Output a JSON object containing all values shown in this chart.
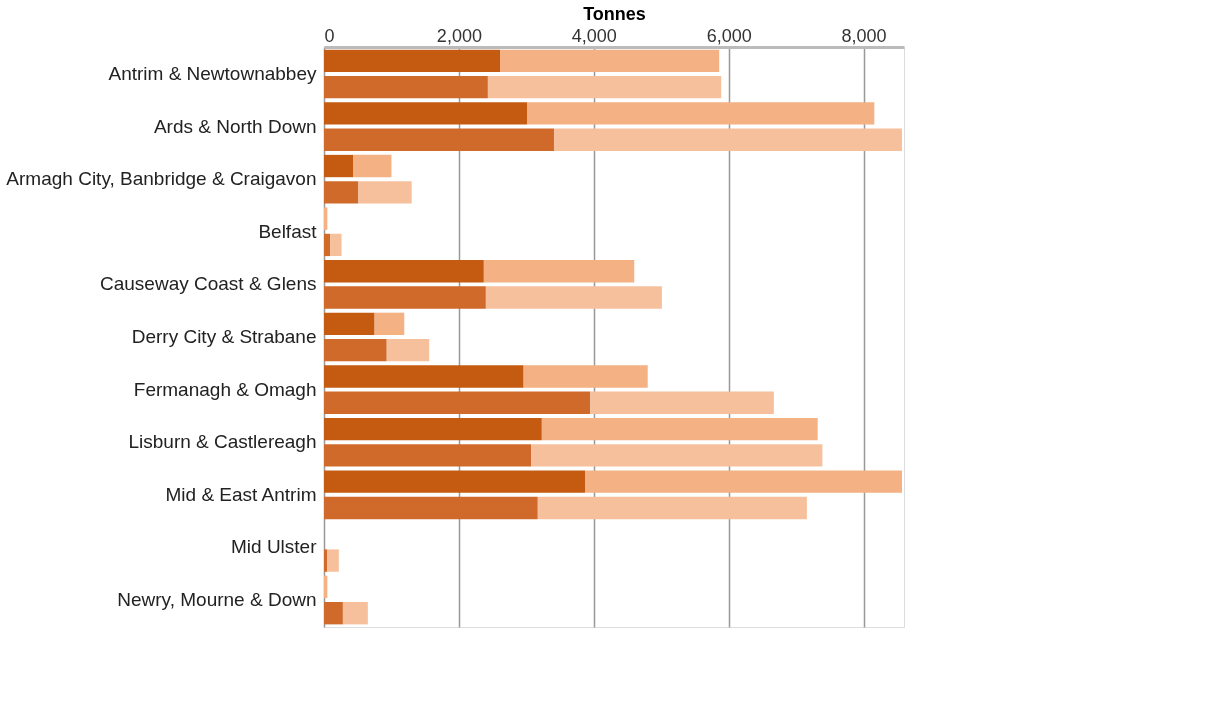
{
  "chart_data": {
    "type": "bar",
    "orientation": "horizontal",
    "stacked": true,
    "xlabel": "Tonnes",
    "categories": [
      "Antrim & Newtownabbey",
      null,
      "Ards & North Down",
      null,
      "Armagh City, Banbridge & Craigavon",
      null,
      "Belfast",
      null,
      "Causeway Coast & Glens",
      null,
      "Derry City & Strabane",
      null,
      "Fermanagh & Omagh",
      null,
      "Lisburn & Castlereagh",
      null,
      "Mid & East Antrim",
      null,
      "Mid Ulster",
      null,
      "Newry, Mourne & Down",
      null
    ],
    "series": [
      {
        "colors": [
          "#c55a11",
          "#cf6a2a",
          "#c55a11",
          "#cf6a2a",
          "#c55a11",
          "#cf6a2a",
          "#c55a11",
          "#cf6a2a",
          "#c55a11",
          "#cf6a2a",
          "#c55a11",
          "#cf6a2a",
          "#c55a11",
          "#cf6a2a",
          "#c55a11",
          "#cf6a2a",
          "#c55a11",
          "#cf6a2a",
          "#c55a11",
          "#cf6a2a",
          "#c55a11",
          "#cf6a2a"
        ],
        "values": [
          2610,
          2430,
          3010,
          3410,
          430,
          510,
          null,
          90,
          2370,
          2400,
          750,
          930,
          2960,
          3950,
          3230,
          3070,
          3870,
          3170,
          null,
          50,
          null,
          280
        ]
      },
      {
        "colors": [
          "#f4b183",
          "#f6c09c",
          "#f4b183",
          "#f6c09c",
          "#f4b183",
          "#f6c09c",
          "#f4b183",
          "#f6c09c",
          "#f4b183",
          "#f6c09c",
          "#f4b183",
          "#f6c09c",
          "#f4b183",
          "#f6c09c",
          "#f4b183",
          "#f6c09c",
          "#f4b183",
          "#f6c09c",
          "#f4b183",
          "#f6c09c",
          "#f4b183",
          "#f6c09c"
        ],
        "values": [
          3250,
          3460,
          5150,
          5160,
          570,
          790,
          50,
          170,
          2230,
          2610,
          440,
          630,
          1840,
          2720,
          4090,
          4320,
          4700,
          3990,
          null,
          170,
          50,
          370
        ]
      }
    ],
    "xlim": [
      0,
      8600
    ],
    "xticks": [
      {
        "value": 0,
        "label": "0"
      },
      {
        "value": 2000,
        "label": "2,000"
      },
      {
        "value": 4000,
        "label": "4,000"
      },
      {
        "value": 6000,
        "label": "6,000"
      },
      {
        "value": 8000,
        "label": "8,000"
      }
    ],
    "grid": "x"
  }
}
